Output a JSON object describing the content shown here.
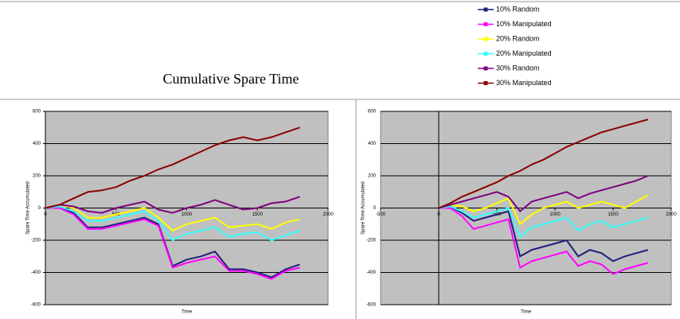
{
  "title": "Cumulative Spare Time",
  "chart_data": [
    {
      "type": "line",
      "x_label": "Time",
      "y_label": "Spare Time Accumulated",
      "xlim": [
        0,
        2000
      ],
      "xticks": [
        0,
        500,
        1000,
        1500,
        2000
      ],
      "ylim": [
        -600,
        600
      ],
      "yticks": [
        -600,
        -400,
        -200,
        0,
        200,
        400,
        600
      ],
      "grid": true,
      "x": [
        0,
        100,
        200,
        300,
        400,
        500,
        600,
        700,
        800,
        900,
        1000,
        1100,
        1200,
        1300,
        1400,
        1500,
        1600,
        1700,
        1800
      ],
      "series": [
        {
          "name": "10% Random",
          "color": "#1f1f7a",
          "values": [
            0,
            10,
            -30,
            -120,
            -120,
            -100,
            -80,
            -60,
            -100,
            -360,
            -320,
            -300,
            -270,
            -380,
            -380,
            -400,
            -430,
            -380,
            -350
          ]
        },
        {
          "name": "10% Manipulated",
          "color": "#ff00ff",
          "values": [
            0,
            0,
            -40,
            -130,
            -130,
            -110,
            -90,
            -70,
            -110,
            -370,
            -340,
            -320,
            -300,
            -390,
            -390,
            -410,
            -440,
            -390,
            -370
          ]
        },
        {
          "name": "20% Random",
          "color": "#ffff00",
          "values": [
            0,
            20,
            0,
            -60,
            -60,
            -40,
            -20,
            0,
            -60,
            -140,
            -100,
            -80,
            -60,
            -120,
            -110,
            -100,
            -130,
            -90,
            -70
          ]
        },
        {
          "name": "20% Manipulated",
          "color": "#33ffff",
          "values": [
            0,
            10,
            -20,
            -80,
            -80,
            -60,
            -40,
            -20,
            -80,
            -200,
            -160,
            -140,
            -120,
            -180,
            -160,
            -150,
            -200,
            -170,
            -140
          ]
        },
        {
          "name": "30% Random",
          "color": "#800080",
          "values": [
            0,
            20,
            10,
            -20,
            -30,
            0,
            20,
            40,
            -10,
            -30,
            0,
            20,
            50,
            20,
            -10,
            0,
            30,
            40,
            70
          ]
        },
        {
          "name": "30% Manipulated",
          "color": "#8b0000",
          "values": [
            0,
            20,
            60,
            100,
            110,
            130,
            170,
            200,
            240,
            270,
            310,
            350,
            390,
            420,
            440,
            420,
            440,
            470,
            500
          ]
        }
      ]
    },
    {
      "type": "line",
      "x_label": "Time",
      "y_label": "Spare Time Accumulated",
      "xlim": [
        -500,
        2000
      ],
      "xticks": [
        -500,
        0,
        500,
        1000,
        1500,
        2000
      ],
      "ylim": [
        -600,
        600
      ],
      "yticks": [
        -600,
        -400,
        -200,
        0,
        200,
        400,
        600
      ],
      "grid": true,
      "x": [
        0,
        100,
        200,
        300,
        400,
        500,
        600,
        700,
        800,
        900,
        1000,
        1100,
        1200,
        1300,
        1400,
        1500,
        1600,
        1700,
        1800
      ],
      "series": [
        {
          "name": "10% Random",
          "color": "#1f1f7a",
          "values": [
            0,
            10,
            -30,
            -80,
            -60,
            -40,
            -20,
            -300,
            -260,
            -240,
            -220,
            -200,
            -300,
            -260,
            -280,
            -330,
            -300,
            -280,
            -260
          ]
        },
        {
          "name": "10% Manipulated",
          "color": "#ff00ff",
          "values": [
            0,
            0,
            -50,
            -130,
            -110,
            -90,
            -70,
            -370,
            -330,
            -310,
            -290,
            -270,
            -360,
            -330,
            -350,
            -410,
            -380,
            -360,
            -340
          ]
        },
        {
          "name": "20% Random",
          "color": "#ffff00",
          "values": [
            0,
            20,
            10,
            -20,
            0,
            30,
            60,
            -100,
            -40,
            0,
            20,
            40,
            0,
            20,
            40,
            20,
            0,
            40,
            80
          ]
        },
        {
          "name": "20% Manipulated",
          "color": "#33ffff",
          "values": [
            0,
            10,
            -20,
            -60,
            -40,
            -20,
            0,
            -180,
            -120,
            -100,
            -80,
            -60,
            -140,
            -100,
            -80,
            -120,
            -100,
            -80,
            -60
          ]
        },
        {
          "name": "30% Random",
          "color": "#800080",
          "values": [
            0,
            20,
            40,
            60,
            80,
            100,
            70,
            -20,
            40,
            60,
            80,
            100,
            60,
            90,
            110,
            130,
            150,
            170,
            200
          ]
        },
        {
          "name": "30% Manipulated",
          "color": "#8b0000",
          "values": [
            0,
            30,
            70,
            100,
            130,
            160,
            200,
            230,
            270,
            300,
            340,
            380,
            410,
            440,
            470,
            490,
            510,
            530,
            550
          ]
        }
      ]
    }
  ]
}
